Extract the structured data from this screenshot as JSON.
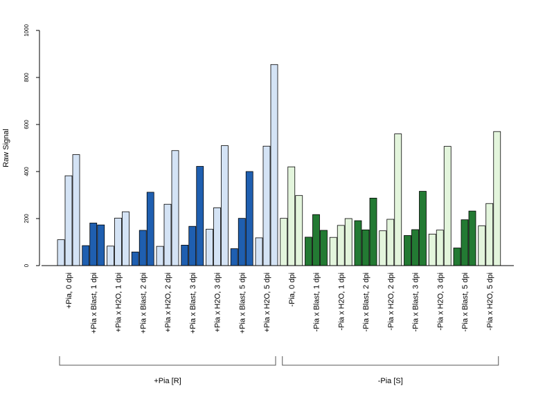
{
  "chart_data": {
    "type": "bar",
    "ylabel": "Raw Signal",
    "xlabel": "",
    "ylim": [
      0,
      1000
    ],
    "yticks": [
      "0",
      "200",
      "400",
      "600",
      "800",
      "1000"
    ],
    "categories": [
      "+Pia, 0 dpi",
      "+Pia x Blast, 1 dpi",
      "+Pia x H2O, 1 dpi",
      "+Pia x Blast, 2 dpi",
      "+Pia x H2O, 2 dpi",
      "+Pia x Blast, 3 dpi",
      "+Pia x H2O, 3 dpi",
      "+Pia x Blast, 5 dpi",
      "+Pia x H2O, 5 dpi",
      "-Pia, 0 dpi",
      "-Pia x Blast, 1 dpi",
      "-Pia x H2O, 1 dpi",
      "-Pia x Blast, 2 dpi",
      "-Pia x H2O, 2 dpi",
      "-Pia x Blast, 3 dpi",
      "-Pia x H2O, 3 dpi",
      "-Pia x Blast, 5 dpi",
      "-Pia x H2O, 5 dpi"
    ],
    "values": [
      [
        110,
        382,
        472
      ],
      [
        85,
        181,
        173
      ],
      [
        83,
        202,
        229
      ],
      [
        58,
        150,
        312
      ],
      [
        82,
        261,
        489
      ],
      [
        87,
        167,
        422
      ],
      [
        155,
        246,
        510
      ],
      [
        72,
        201,
        400
      ],
      [
        118,
        508,
        855
      ],
      [
        201,
        420,
        298
      ],
      [
        121,
        217,
        150
      ],
      [
        120,
        171,
        200
      ],
      [
        191,
        152,
        287
      ],
      [
        148,
        197,
        560
      ],
      [
        128,
        153,
        316
      ],
      [
        134,
        151,
        507
      ],
      [
        75,
        195,
        232
      ],
      [
        169,
        264,
        570
      ]
    ],
    "bar_colors": [
      "#d4e3f5",
      "#1f5fb0",
      "#d4e3f5",
      "#1f5fb0",
      "#d4e3f5",
      "#1f5fb0",
      "#d4e3f5",
      "#1f5fb0",
      "#d4e3f5",
      "#e3f5dc",
      "#237a33",
      "#e3f5dc",
      "#237a33",
      "#e3f5dc",
      "#237a33",
      "#e3f5dc",
      "#237a33",
      "#e3f5dc"
    ],
    "groups": [
      {
        "label": "+Pia [R]",
        "from": 0,
        "to": 8
      },
      {
        "label": "-Pia [S]",
        "from": 9,
        "to": 17
      }
    ],
    "grid": false,
    "legend": "none"
  }
}
